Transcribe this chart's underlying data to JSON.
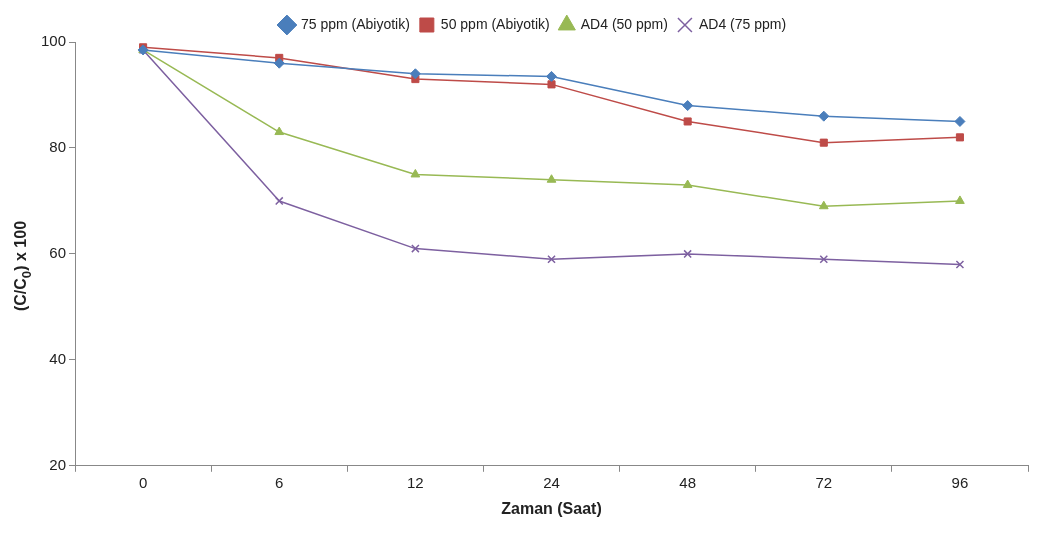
{
  "chart_data": {
    "type": "line",
    "xlabel": "Zaman (Saat)",
    "ylabel": "(C/C$_{0}$) x 100",
    "categories": [
      "0",
      "6",
      "12",
      "24",
      "48",
      "72",
      "96"
    ],
    "ylim": [
      20,
      100
    ],
    "yticks": [
      20,
      40,
      60,
      80,
      100
    ],
    "grid": false,
    "legend": "top",
    "series": [
      {
        "name": "75 ppm (Abiyotik)",
        "color": "#4a7ebb",
        "marker": "diamond",
        "values": [
          98.5,
          96,
          94,
          93.5,
          88,
          86,
          85
        ]
      },
      {
        "name": "50 ppm (Abiyotik)",
        "color": "#be4b48",
        "marker": "square",
        "values": [
          99,
          97,
          93,
          92,
          85,
          81,
          82
        ]
      },
      {
        "name": "AD4 (50 ppm)",
        "color": "#98b954",
        "marker": "triangle",
        "values": [
          98.5,
          83,
          75,
          74,
          73,
          69,
          70
        ]
      },
      {
        "name": "AD4 (75 ppm)",
        "color": "#7d60a0",
        "marker": "cross",
        "values": [
          98.5,
          70,
          61,
          59,
          60,
          59,
          58
        ]
      }
    ]
  }
}
